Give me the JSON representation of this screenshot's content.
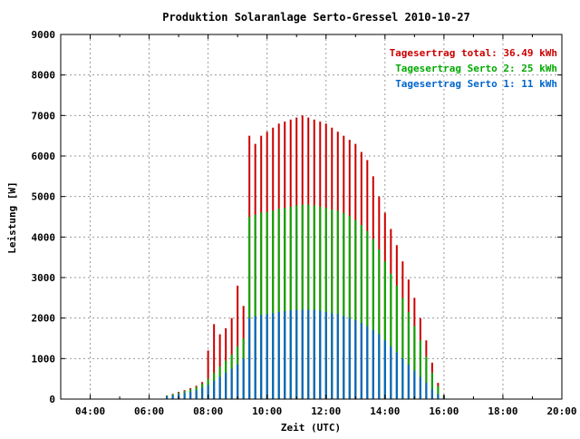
{
  "chart_data": {
    "type": "bar",
    "stacked": true,
    "title": "Produktion Solaranlage Serto-Gressel 2010-10-27",
    "xlabel": "Zeit (UTC)",
    "ylabel": "Leistung [W]",
    "ylim": [
      0,
      9000
    ],
    "y_ticks": [
      "0",
      "1000",
      "2000",
      "3000",
      "4000",
      "5000",
      "6000",
      "7000",
      "8000",
      "9000"
    ],
    "xlim_hours": [
      3.0,
      20.0
    ],
    "x_ticks": [
      "04:00",
      "06:00",
      "08:00",
      "10:00",
      "12:00",
      "14:00",
      "16:00",
      "18:00",
      "20:00"
    ],
    "x_tick_hours": [
      4,
      6,
      8,
      10,
      12,
      14,
      16,
      18,
      20
    ],
    "grid": true,
    "legend_position": "top-right",
    "legend": [
      {
        "label": "Tagesertrag total: 36.49 kWh",
        "color": "#cc0000"
      },
      {
        "label": "Tagesertrag Serto 2: 25 kWh",
        "color": "#00aa00"
      },
      {
        "label": "Tagesertrag Serto 1: 11 kWh",
        "color": "#0066cc"
      }
    ],
    "series": [
      {
        "color": "#0066cc",
        "points": [
          [
            6.6,
            60
          ],
          [
            6.8,
            90
          ],
          [
            7.0,
            120
          ],
          [
            7.2,
            150
          ],
          [
            7.4,
            180
          ],
          [
            7.6,
            220
          ],
          [
            7.8,
            280
          ],
          [
            8.0,
            350
          ],
          [
            8.2,
            450
          ],
          [
            8.4,
            550
          ],
          [
            8.6,
            650
          ],
          [
            8.8,
            750
          ],
          [
            9.0,
            850
          ],
          [
            9.2,
            1000
          ],
          [
            9.4,
            2000
          ],
          [
            9.6,
            2050
          ],
          [
            9.8,
            2080
          ],
          [
            10.0,
            2100
          ],
          [
            10.2,
            2120
          ],
          [
            10.4,
            2150
          ],
          [
            10.6,
            2170
          ],
          [
            10.8,
            2190
          ],
          [
            11.0,
            2200
          ],
          [
            11.2,
            2210
          ],
          [
            11.4,
            2200
          ],
          [
            11.6,
            2200
          ],
          [
            11.8,
            2180
          ],
          [
            12.0,
            2150
          ],
          [
            12.2,
            2120
          ],
          [
            12.4,
            2100
          ],
          [
            12.6,
            2050
          ],
          [
            12.8,
            2000
          ],
          [
            13.0,
            1950
          ],
          [
            13.2,
            1880
          ],
          [
            13.4,
            1800
          ],
          [
            13.6,
            1700
          ],
          [
            13.8,
            1600
          ],
          [
            14.0,
            1450
          ],
          [
            14.2,
            1300
          ],
          [
            14.4,
            1150
          ],
          [
            14.6,
            1000
          ],
          [
            14.8,
            850
          ],
          [
            15.0,
            700
          ],
          [
            15.2,
            550
          ],
          [
            15.4,
            400
          ],
          [
            15.6,
            250
          ],
          [
            15.8,
            120
          ],
          [
            16.0,
            40
          ]
        ]
      },
      {
        "color": "#00aa00",
        "points": [
          [
            6.6,
            80
          ],
          [
            6.8,
            120
          ],
          [
            7.0,
            160
          ],
          [
            7.2,
            200
          ],
          [
            7.4,
            240
          ],
          [
            7.6,
            300
          ],
          [
            7.8,
            380
          ],
          [
            8.0,
            500
          ],
          [
            8.2,
            650
          ],
          [
            8.4,
            800
          ],
          [
            8.6,
            950
          ],
          [
            8.8,
            1100
          ],
          [
            9.0,
            1300
          ],
          [
            9.2,
            1500
          ],
          [
            9.4,
            4500
          ],
          [
            9.6,
            4550
          ],
          [
            9.8,
            4600
          ],
          [
            10.0,
            4620
          ],
          [
            10.2,
            4650
          ],
          [
            10.4,
            4700
          ],
          [
            10.6,
            4720
          ],
          [
            10.8,
            4750
          ],
          [
            11.0,
            4780
          ],
          [
            11.2,
            4800
          ],
          [
            11.4,
            4800
          ],
          [
            11.6,
            4780
          ],
          [
            11.8,
            4750
          ],
          [
            12.0,
            4720
          ],
          [
            12.2,
            4680
          ],
          [
            12.4,
            4650
          ],
          [
            12.6,
            4600
          ],
          [
            12.8,
            4520
          ],
          [
            13.0,
            4420
          ],
          [
            13.2,
            4300
          ],
          [
            13.4,
            4150
          ],
          [
            13.6,
            3950
          ],
          [
            13.8,
            3700
          ],
          [
            14.0,
            3400
          ],
          [
            14.2,
            3100
          ],
          [
            14.4,
            2800
          ],
          [
            14.6,
            2500
          ],
          [
            14.8,
            2150
          ],
          [
            15.0,
            1800
          ],
          [
            15.2,
            1450
          ],
          [
            15.4,
            1050
          ],
          [
            15.6,
            650
          ],
          [
            15.8,
            320
          ],
          [
            16.0,
            80
          ]
        ]
      },
      {
        "color": "#cc0000",
        "points": [
          [
            6.6,
            90
          ],
          [
            6.8,
            130
          ],
          [
            7.0,
            180
          ],
          [
            7.2,
            220
          ],
          [
            7.4,
            270
          ],
          [
            7.6,
            330
          ],
          [
            7.8,
            420
          ],
          [
            8.0,
            1200
          ],
          [
            8.2,
            1850
          ],
          [
            8.4,
            1600
          ],
          [
            8.6,
            1750
          ],
          [
            8.8,
            2000
          ],
          [
            9.0,
            2800
          ],
          [
            9.2,
            2300
          ],
          [
            9.4,
            6500
          ],
          [
            9.6,
            6300
          ],
          [
            9.8,
            6500
          ],
          [
            10.0,
            6600
          ],
          [
            10.2,
            6700
          ],
          [
            10.4,
            6800
          ],
          [
            10.6,
            6850
          ],
          [
            10.8,
            6900
          ],
          [
            11.0,
            6950
          ],
          [
            11.2,
            7000
          ],
          [
            11.4,
            6950
          ],
          [
            11.6,
            6900
          ],
          [
            11.8,
            6850
          ],
          [
            12.0,
            6800
          ],
          [
            12.2,
            6700
          ],
          [
            12.4,
            6600
          ],
          [
            12.6,
            6500
          ],
          [
            12.8,
            6400
          ],
          [
            13.0,
            6300
          ],
          [
            13.2,
            6100
          ],
          [
            13.4,
            5900
          ],
          [
            13.6,
            5500
          ],
          [
            13.8,
            5000
          ],
          [
            14.0,
            4600
          ],
          [
            14.2,
            4200
          ],
          [
            14.4,
            3800
          ],
          [
            14.6,
            3400
          ],
          [
            14.8,
            2950
          ],
          [
            15.0,
            2500
          ],
          [
            15.2,
            2000
          ],
          [
            15.4,
            1450
          ],
          [
            15.6,
            900
          ],
          [
            15.8,
            400
          ],
          [
            16.0,
            100
          ]
        ]
      }
    ]
  }
}
